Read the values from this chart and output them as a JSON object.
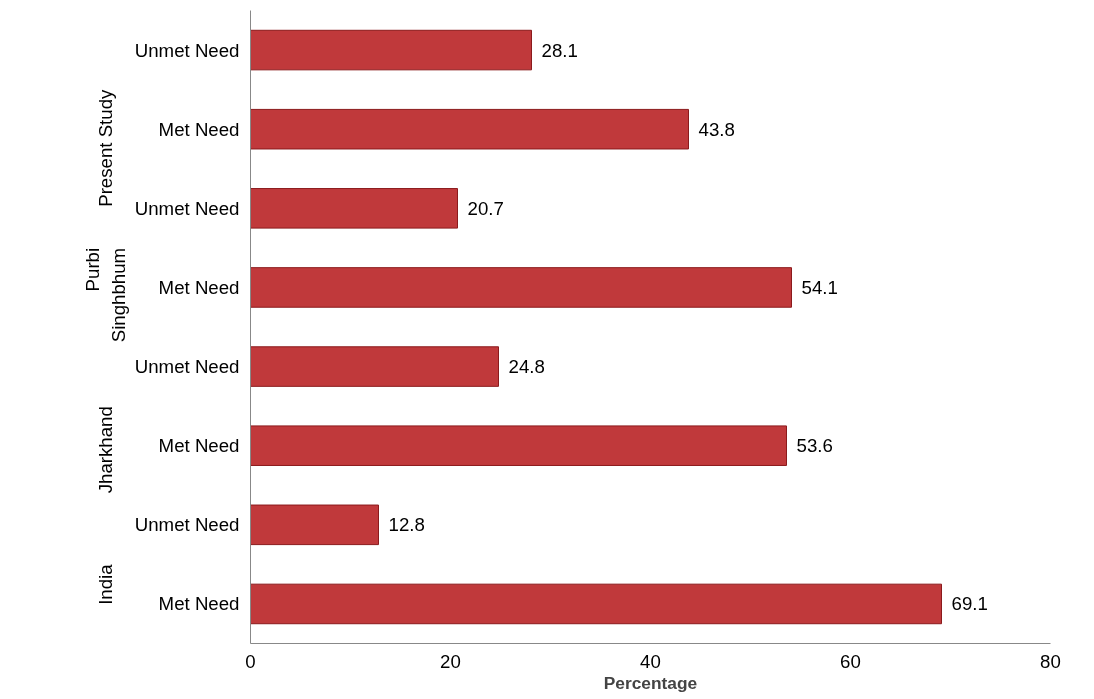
{
  "chart_data": {
    "type": "bar",
    "orientation": "horizontal",
    "xlabel": "Percentage",
    "categories": [
      "Unmet Need",
      "Met Need",
      "Unmet Need",
      "Met Need",
      "Unmet Need",
      "Met Need",
      "Unmet Need",
      "Met Need"
    ],
    "values": [
      28.1,
      43.8,
      20.7,
      54.1,
      24.8,
      53.6,
      12.8,
      69.1
    ],
    "color": "#c0393b",
    "annotations": [
      "Present Study",
      "Purbi\nSinghbhum",
      "Jharkhand",
      "India"
    ],
    "xlim": [
      0,
      80
    ],
    "xticks": [
      0,
      20,
      40,
      60,
      80
    ],
    "grid": false,
    "data_labels": true
  }
}
